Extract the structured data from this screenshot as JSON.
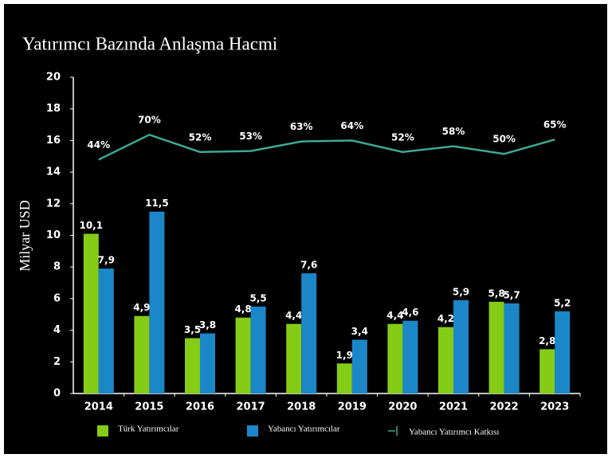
{
  "chart_data": {
    "type": "bar",
    "title": "Yatırımcı Bazında Anlaşma Hacmi",
    "y_label": "Milyar USD",
    "categories": [
      "2014",
      "2015",
      "2016",
      "2017",
      "2018",
      "2019",
      "2020",
      "2021",
      "2022",
      "2023"
    ],
    "ylim": [
      0,
      20
    ],
    "yticks": [
      0,
      2,
      4,
      6,
      8,
      10,
      12,
      14,
      16,
      18,
      20
    ],
    "y2lim": [
      -200,
      130
    ],
    "series": [
      {
        "name": "Türk Yatırımcılar",
        "color": "#84cc16",
        "values": [
          10.1,
          4.9,
          3.5,
          4.8,
          4.4,
          1.9,
          4.4,
          4.2,
          5.8,
          2.8
        ],
        "value_labels": [
          "10,1",
          "4,9",
          "3,5",
          "4,8",
          "4,4",
          "1,9",
          "4,4",
          "4,2",
          "5,8",
          "2,8"
        ]
      },
      {
        "name": "Yabancı Yatırımcılar",
        "color": "#1b87c9",
        "values": [
          7.9,
          11.5,
          3.8,
          5.5,
          7.6,
          3.4,
          4.6,
          5.9,
          5.7,
          5.2
        ],
        "value_labels": [
          "7,9",
          "11,5",
          "3,8",
          "5,5",
          "7,6",
          "3,4",
          "4,6",
          "5,9",
          "5,7",
          "5,2"
        ]
      },
      {
        "name": "Yabancı Yatırımcı Katkısı",
        "type": "line",
        "axis": "y2",
        "color": "#3ea894",
        "values": [
          44,
          70,
          52,
          53,
          63,
          64,
          52,
          58,
          50,
          65
        ],
        "value_labels": [
          "44%",
          "70%",
          "52%",
          "53%",
          "63%",
          "64%",
          "52%",
          "58%",
          "50%",
          "65%"
        ]
      }
    ]
  }
}
